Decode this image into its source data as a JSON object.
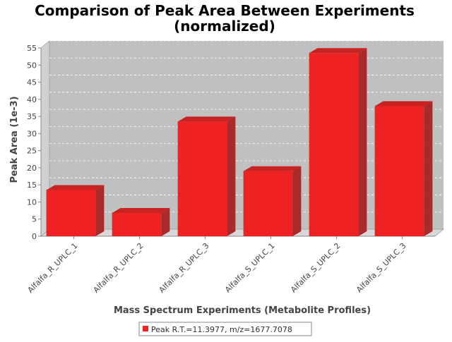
{
  "chart_data": {
    "type": "bar",
    "title_line1": "Comparison of Peak Area Between Experiments",
    "title_line2": "(normalized)",
    "xlabel": "Mass Spectrum Experiments (Metabolite Profiles)",
    "ylabel": "Peak Area (1e-3)",
    "ylim": [
      0,
      55
    ],
    "yticks": [
      "0",
      "5",
      "10",
      "15",
      "20",
      "25",
      "30",
      "35",
      "40",
      "45",
      "50",
      "55"
    ],
    "categories": [
      "Alfalfa_R_UPLC_1",
      "Alfalfa_R_UPLC_2",
      "Alfalfa_R_UPLC_3",
      "Alfalfa_S_UPLC_1",
      "Alfalfa_S_UPLC_2",
      "Alfalfa_S_UPLC_3"
    ],
    "series": [
      {
        "name": "Peak R.T.=11.3977, m/z=1677.7078",
        "values": [
          13.5,
          6.8,
          33.5,
          19.0,
          53.5,
          38.0
        ],
        "color": "#ee2222"
      }
    ],
    "grid": true,
    "legend_position": "bottom",
    "plot_background": "#c0c0c0"
  }
}
